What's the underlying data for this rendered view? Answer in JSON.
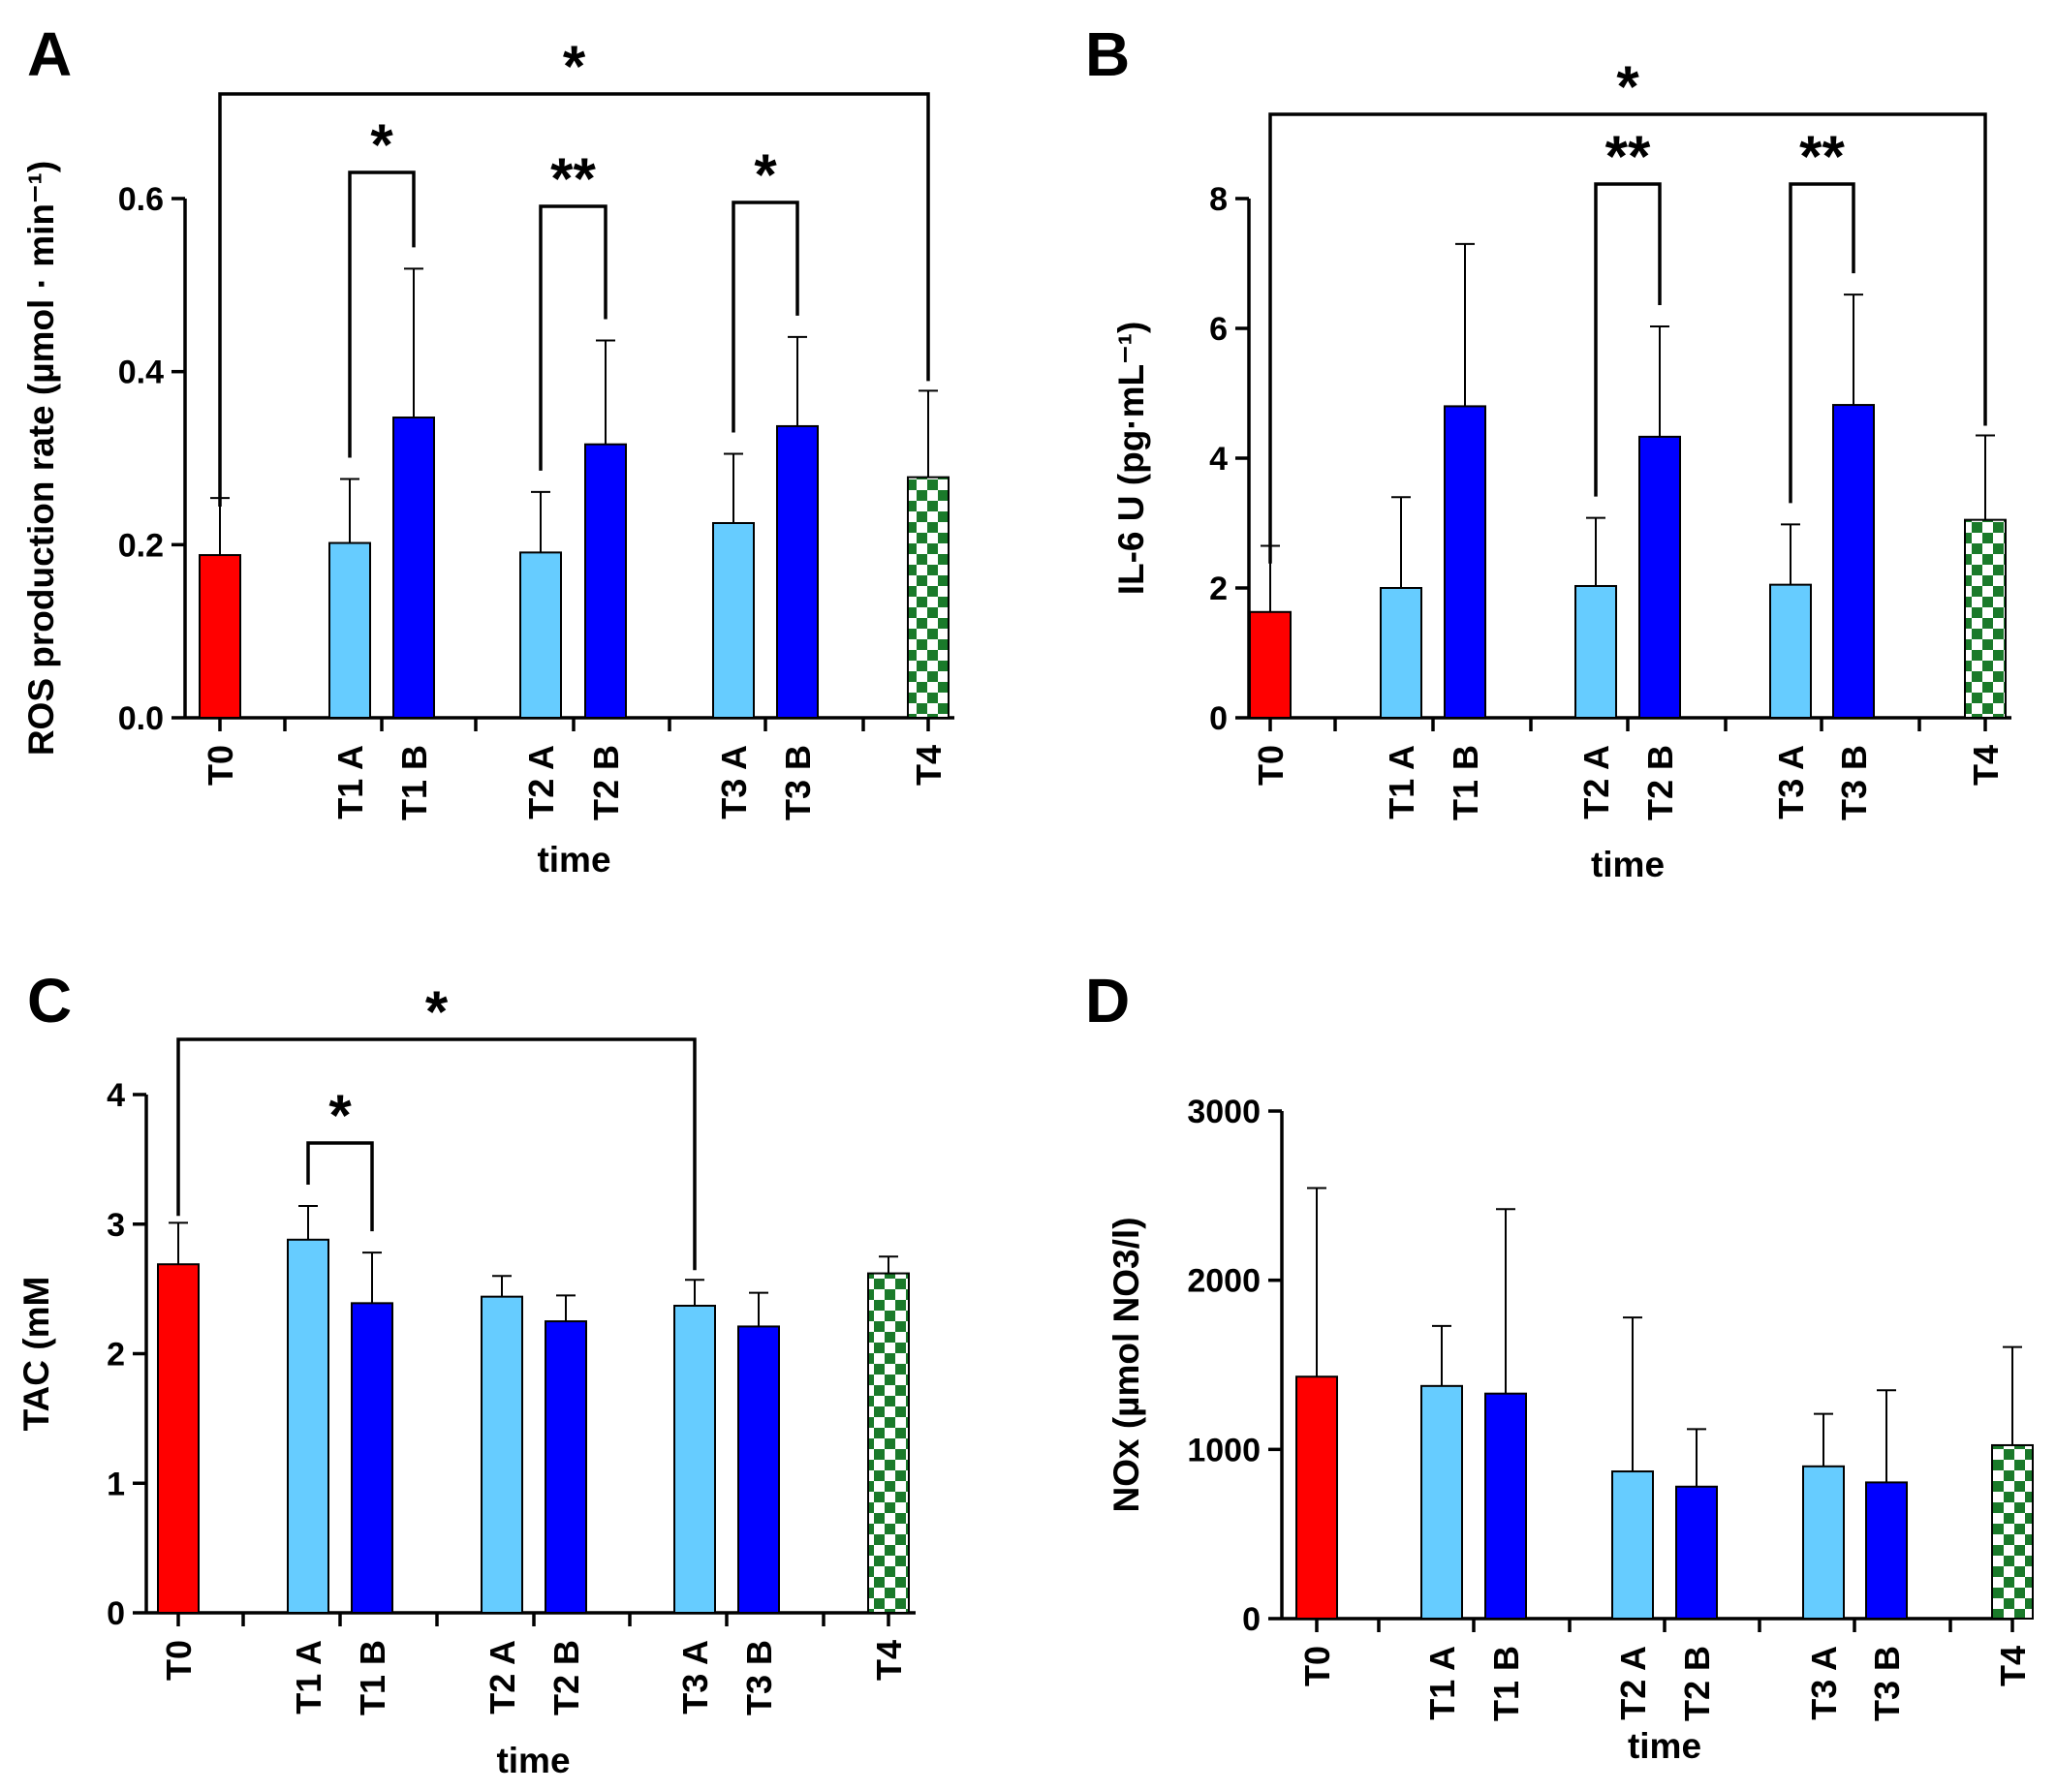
{
  "colors": {
    "T0": "#ff0000",
    "A": "#66ccff",
    "B": "#0000ff",
    "T4_checker_dark": "#1a7a2a",
    "T4_checker_light": "#ffffff"
  },
  "chart_data": [
    {
      "panel": "A",
      "type": "bar",
      "title": "",
      "xlabel": "time",
      "ylabel": "ROS production rate (µmol · min⁻¹)",
      "ylim": [
        0,
        0.6
      ],
      "yticks": [
        "0.0",
        "0.2",
        "0.4",
        "0.6"
      ],
      "ytick_values": [
        0,
        0.2,
        0.4,
        0.6
      ],
      "categories": [
        "T0",
        "T1 A",
        "T1 B",
        "T2 A",
        "T2 B",
        "T3 A",
        "T3 B",
        "T4"
      ],
      "groups": [
        "T0",
        "A",
        "B",
        "A",
        "B",
        "A",
        "B",
        "T4"
      ],
      "values": [
        0.188,
        0.202,
        0.347,
        0.191,
        0.316,
        0.225,
        0.337,
        0.278
      ],
      "errors": [
        0.066,
        0.074,
        0.172,
        0.07,
        0.12,
        0.08,
        0.103,
        0.1
      ],
      "significance": [
        {
          "from": "T0",
          "to": "T4",
          "label": "*"
        },
        {
          "from": "T1 A",
          "to": "T1 B",
          "label": "*"
        },
        {
          "from": "T2 A",
          "to": "T2 B",
          "label": "**"
        },
        {
          "from": "T3 A",
          "to": "T3 B",
          "label": "*"
        }
      ]
    },
    {
      "panel": "B",
      "type": "bar",
      "title": "",
      "xlabel": "time",
      "ylabel": "IL-6 U (pg·mL⁻¹)",
      "ylim": [
        0,
        8
      ],
      "yticks": [
        "0",
        "2",
        "4",
        "6",
        "8"
      ],
      "ytick_values": [
        0,
        2,
        4,
        6,
        8
      ],
      "categories": [
        "T0",
        "T1 A",
        "T1 B",
        "T2 A",
        "T2 B",
        "T3 A",
        "T3 B",
        "T4"
      ],
      "groups": [
        "T0",
        "A",
        "B",
        "A",
        "B",
        "A",
        "B",
        "T4"
      ],
      "values": [
        1.63,
        2.0,
        4.8,
        2.03,
        4.33,
        2.05,
        4.82,
        3.05
      ],
      "errors": [
        1.02,
        1.4,
        2.5,
        1.05,
        1.7,
        0.93,
        1.7,
        1.3
      ],
      "significance": [
        {
          "from": "T0",
          "to": "T4",
          "label": "*"
        },
        {
          "from": "T2 A",
          "to": "T2 B",
          "label": "**"
        },
        {
          "from": "T3 A",
          "to": "T3 B",
          "label": "**"
        }
      ]
    },
    {
      "panel": "C",
      "type": "bar",
      "title": "",
      "xlabel": "time",
      "ylabel": "TAC (mM",
      "ylim": [
        0,
        4
      ],
      "yticks": [
        "0",
        "1",
        "2",
        "3",
        "4"
      ],
      "ytick_values": [
        0,
        1,
        2,
        3,
        4
      ],
      "categories": [
        "T0",
        "T1 A",
        "T1 B",
        "T2 A",
        "T2 B",
        "T3 A",
        "T3 B",
        "T4"
      ],
      "groups": [
        "T0",
        "A",
        "B",
        "A",
        "B",
        "A",
        "B",
        "T4"
      ],
      "values": [
        2.69,
        2.88,
        2.39,
        2.44,
        2.25,
        2.37,
        2.21,
        2.62
      ],
      "errors": [
        0.32,
        0.26,
        0.39,
        0.16,
        0.2,
        0.2,
        0.26,
        0.13
      ],
      "significance": [
        {
          "from": "T0",
          "to": "T3 A",
          "label": "*"
        },
        {
          "from": "T1 A",
          "to": "T1 B",
          "label": "*"
        }
      ]
    },
    {
      "panel": "D",
      "type": "bar",
      "title": "",
      "xlabel": "time",
      "ylabel": "NOx (µmol  NO3/l)",
      "ylim": [
        0,
        3000
      ],
      "yticks": [
        "0",
        "1000",
        "2000",
        "3000"
      ],
      "ytick_values": [
        0,
        1000,
        2000,
        3000
      ],
      "categories": [
        "T0",
        "T1 A",
        "T1 B",
        "T2 A",
        "T2 B",
        "T3 A",
        "T3 B",
        "T4"
      ],
      "groups": [
        "T0",
        "A",
        "B",
        "A",
        "B",
        "A",
        "B",
        "T4"
      ],
      "values": [
        1430,
        1375,
        1330,
        870,
        780,
        900,
        805,
        1025
      ],
      "errors": [
        1115,
        355,
        1090,
        910,
        340,
        310,
        545,
        580
      ],
      "significance": []
    }
  ]
}
